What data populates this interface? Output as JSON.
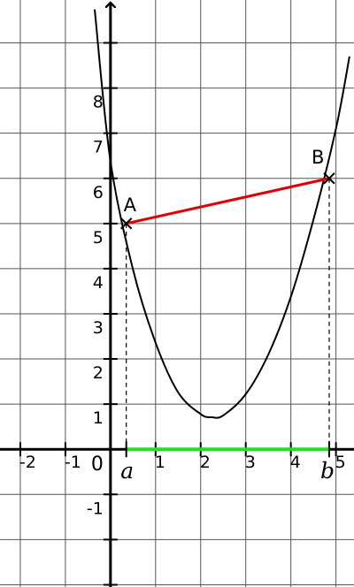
{
  "chart_data": {
    "type": "line",
    "xlim": [
      -2.45,
      5.4
    ],
    "ylim": [
      -3.05,
      9.95
    ],
    "grid": true,
    "x_tick_labels": [
      "-2",
      "-1",
      "0",
      "1",
      "2",
      "3",
      "4",
      "5"
    ],
    "y_tick_labels": [
      "-1",
      "1",
      "2",
      "3",
      "4",
      "5",
      "6",
      "7",
      "8"
    ],
    "curve": {
      "name": "",
      "points": [
        {
          "x": -0.35,
          "y": 9.74
        },
        {
          "x": 0,
          "y": 6.38
        },
        {
          "x": 0.5,
          "y": 3.98
        },
        {
          "x": 1,
          "y": 2.36
        },
        {
          "x": 1.5,
          "y": 1.26
        },
        {
          "x": 2,
          "y": 0.78
        },
        {
          "x": 2.25,
          "y": 0.71
        },
        {
          "x": 2.5,
          "y": 0.75
        },
        {
          "x": 3,
          "y": 1.22
        },
        {
          "x": 3.5,
          "y": 2.1
        },
        {
          "x": 4,
          "y": 3.38
        },
        {
          "x": 4.5,
          "y": 5.08
        },
        {
          "x": 5,
          "y": 7.1
        },
        {
          "x": 5.3,
          "y": 8.7
        }
      ]
    },
    "point_a": {
      "label": "A",
      "x": 0.35,
      "y": 5.0
    },
    "point_b": {
      "label": "B",
      "x": 4.85,
      "y": 6.0
    },
    "param_a": "a",
    "param_b": "b",
    "colors": {
      "grid": "#555555",
      "axes": "#000000",
      "curve": "#000000",
      "secant": "#e00000",
      "interval": "#22e022"
    }
  }
}
